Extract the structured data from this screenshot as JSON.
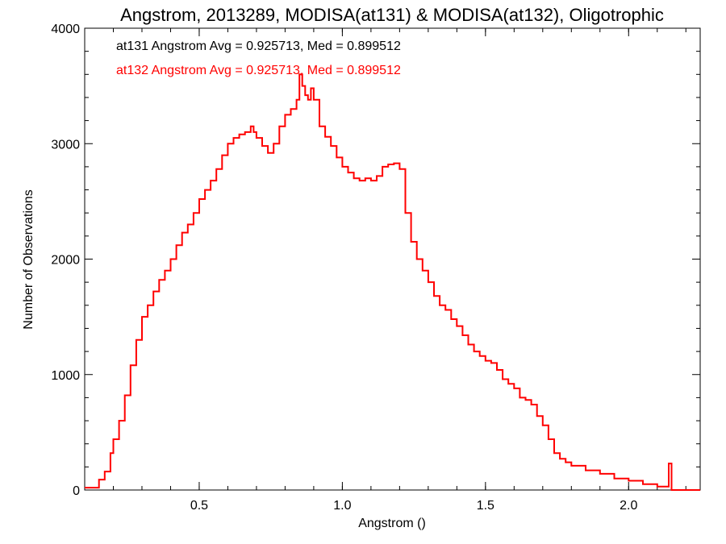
{
  "chart_data": {
    "type": "line",
    "title": "Angstrom, 2013289, MODISA(at131) & MODISA(at132), Oligotrophic",
    "xlabel": "Angstrom ()",
    "ylabel": "Number of Observations",
    "xlim": [
      0.1,
      2.25
    ],
    "ylim": [
      0,
      4000
    ],
    "xticks": [
      "0.5",
      "1.0",
      "1.5",
      "2.0"
    ],
    "yticks": [
      "0",
      "1000",
      "2000",
      "3000",
      "4000"
    ],
    "annotations": [
      {
        "text": "at131 Angstrom Avg = 0.925713, Med = 0.899512",
        "color": "#000000"
      },
      {
        "text": "at132 Angstrom Avg = 0.925713, Med = 0.899512",
        "color": "#ff0000"
      }
    ],
    "series": [
      {
        "color": "#ff0000",
        "x": [
          0.1,
          0.15,
          0.17,
          0.19,
          0.2,
          0.22,
          0.24,
          0.26,
          0.28,
          0.3,
          0.32,
          0.34,
          0.36,
          0.38,
          0.4,
          0.42,
          0.44,
          0.46,
          0.48,
          0.5,
          0.52,
          0.54,
          0.56,
          0.58,
          0.6,
          0.62,
          0.64,
          0.66,
          0.68,
          0.69,
          0.7,
          0.72,
          0.74,
          0.76,
          0.78,
          0.8,
          0.82,
          0.84,
          0.85,
          0.86,
          0.87,
          0.88,
          0.89,
          0.9,
          0.92,
          0.94,
          0.96,
          0.98,
          1.0,
          1.02,
          1.04,
          1.06,
          1.08,
          1.1,
          1.12,
          1.14,
          1.16,
          1.18,
          1.2,
          1.22,
          1.24,
          1.26,
          1.28,
          1.3,
          1.32,
          1.34,
          1.36,
          1.38,
          1.4,
          1.42,
          1.44,
          1.46,
          1.48,
          1.5,
          1.52,
          1.54,
          1.56,
          1.58,
          1.6,
          1.62,
          1.64,
          1.66,
          1.68,
          1.7,
          1.72,
          1.74,
          1.76,
          1.78,
          1.8,
          1.85,
          1.9,
          1.95,
          2.0,
          2.05,
          2.1,
          2.13,
          2.14,
          2.15,
          2.16,
          2.25
        ],
        "y": [
          20,
          90,
          160,
          320,
          440,
          600,
          820,
          1080,
          1300,
          1500,
          1600,
          1720,
          1820,
          1900,
          2000,
          2120,
          2230,
          2300,
          2400,
          2520,
          2600,
          2680,
          2780,
          2900,
          3000,
          3050,
          3080,
          3100,
          3150,
          3100,
          3050,
          2980,
          2920,
          3000,
          3150,
          3250,
          3300,
          3380,
          3600,
          3500,
          3420,
          3380,
          3480,
          3380,
          3150,
          3060,
          2980,
          2880,
          2800,
          2750,
          2700,
          2680,
          2700,
          2680,
          2720,
          2800,
          2820,
          2830,
          2780,
          2400,
          2150,
          2000,
          1900,
          1800,
          1680,
          1600,
          1560,
          1480,
          1420,
          1340,
          1260,
          1200,
          1160,
          1120,
          1100,
          1040,
          960,
          920,
          880,
          800,
          780,
          740,
          640,
          560,
          440,
          320,
          270,
          240,
          210,
          170,
          140,
          100,
          80,
          50,
          30,
          30,
          230,
          0,
          0,
          0
        ]
      }
    ]
  }
}
